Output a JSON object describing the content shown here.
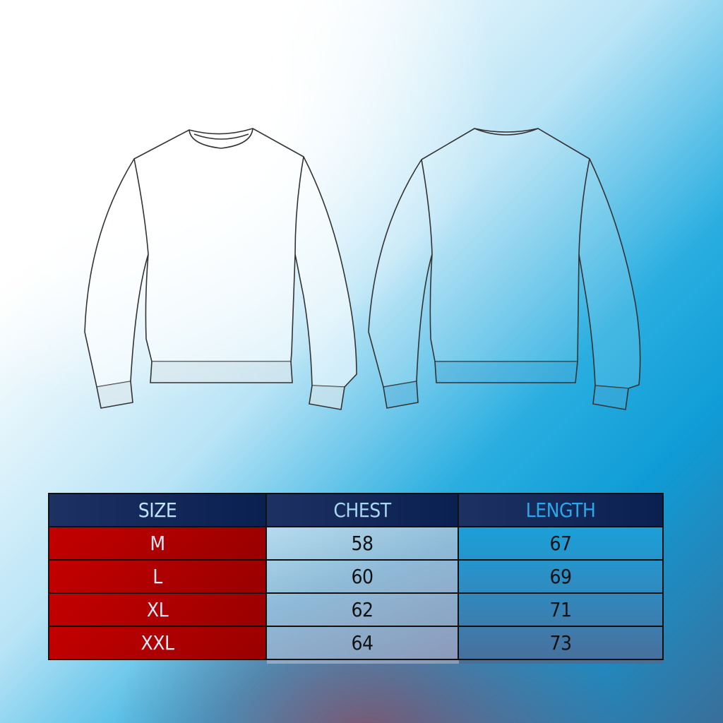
{
  "colors": {
    "header_bg": "#152a5c",
    "size_col_bg": "#b00000",
    "background_accent": "#0f9cd6"
  },
  "illustrations": [
    "sweatshirt-front",
    "sweatshirt-back"
  ],
  "size_table": {
    "headers": [
      "SIZE",
      "CHEST",
      "LENGTH"
    ],
    "rows": [
      {
        "size": "M",
        "chest": "58",
        "length": "67"
      },
      {
        "size": "L",
        "chest": "60",
        "length": "69"
      },
      {
        "size": "XL",
        "chest": "62",
        "length": "71"
      },
      {
        "size": "XXL",
        "chest": "64",
        "length": "73"
      }
    ]
  }
}
